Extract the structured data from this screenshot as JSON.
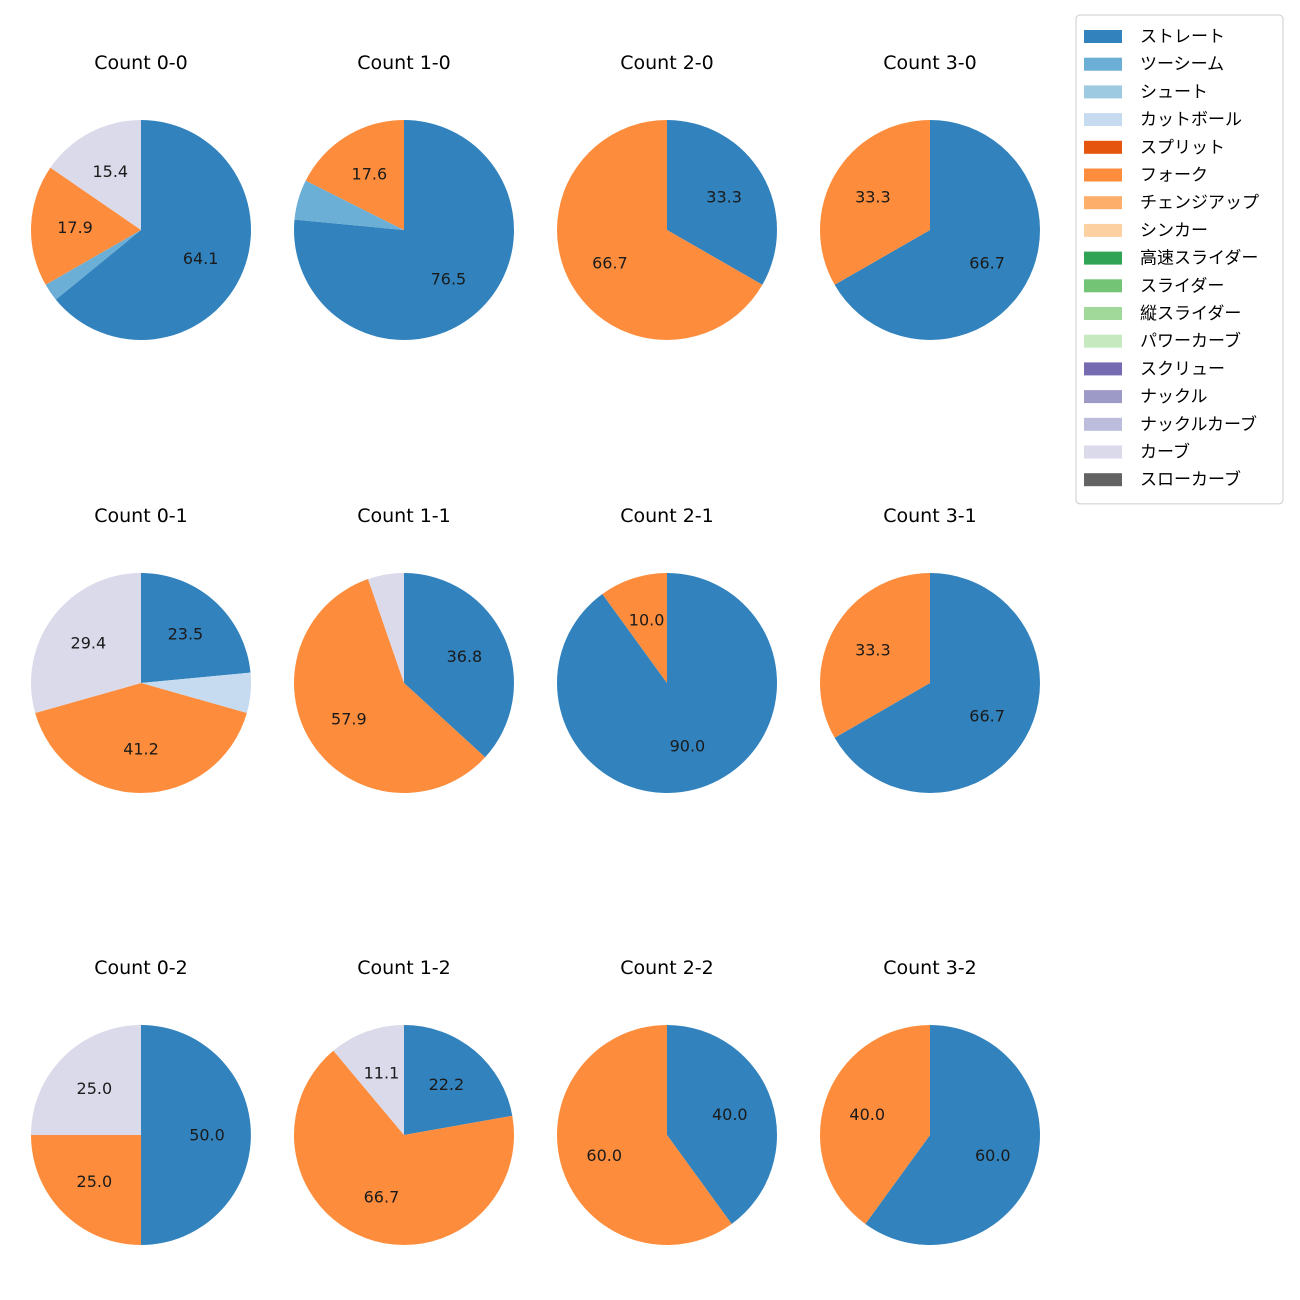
{
  "colors": {
    "ストレート": "#3182bd",
    "ツーシーム": "#6baed6",
    "シュート": "#9ecae1",
    "カットボール": "#c6dbef",
    "スプリット": "#e6550d",
    "フォーク": "#fd8d3c",
    "チェンジアップ": "#fdae6b",
    "シンカー": "#fdd0a2",
    "高速スライダー": "#31a354",
    "スライダー": "#74c476",
    "縦スライダー": "#a1d99b",
    "パワーカーブ": "#c7e9c0",
    "スクリュー": "#756bb1",
    "ナックル": "#9e9ac8",
    "ナックルカーブ": "#bcbddc",
    "カーブ": "#dadaeb",
    "スローカーブ": "#636363"
  },
  "legend": [
    "ストレート",
    "ツーシーム",
    "シュート",
    "カットボール",
    "スプリット",
    "フォーク",
    "チェンジアップ",
    "シンカー",
    "高速スライダー",
    "スライダー",
    "縦スライダー",
    "パワーカーブ",
    "スクリュー",
    "ナックル",
    "ナックルカーブ",
    "カーブ",
    "スローカーブ"
  ],
  "chart_data": [
    {
      "type": "pie",
      "title": "Count 0-0",
      "slices": [
        {
          "label": "ストレート",
          "value": 64.1,
          "text": "64.1"
        },
        {
          "label": "ツーシーム",
          "value": 2.6,
          "text": ""
        },
        {
          "label": "フォーク",
          "value": 17.9,
          "text": "17.9"
        },
        {
          "label": "カーブ",
          "value": 15.4,
          "text": "15.4"
        }
      ]
    },
    {
      "type": "pie",
      "title": "Count 1-0",
      "slices": [
        {
          "label": "ストレート",
          "value": 76.5,
          "text": "76.5"
        },
        {
          "label": "ツーシーム",
          "value": 5.9,
          "text": ""
        },
        {
          "label": "フォーク",
          "value": 17.6,
          "text": "17.6"
        }
      ]
    },
    {
      "type": "pie",
      "title": "Count 2-0",
      "slices": [
        {
          "label": "ストレート",
          "value": 33.3,
          "text": "33.3"
        },
        {
          "label": "フォーク",
          "value": 66.7,
          "text": "66.7"
        }
      ]
    },
    {
      "type": "pie",
      "title": "Count 3-0",
      "slices": [
        {
          "label": "ストレート",
          "value": 66.7,
          "text": "66.7"
        },
        {
          "label": "フォーク",
          "value": 33.3,
          "text": "33.3"
        }
      ]
    },
    {
      "type": "pie",
      "title": "Count 0-1",
      "slices": [
        {
          "label": "ストレート",
          "value": 23.5,
          "text": "23.5"
        },
        {
          "label": "カットボール",
          "value": 5.9,
          "text": ""
        },
        {
          "label": "フォーク",
          "value": 41.2,
          "text": "41.2"
        },
        {
          "label": "カーブ",
          "value": 29.4,
          "text": "29.4"
        }
      ]
    },
    {
      "type": "pie",
      "title": "Count 1-1",
      "slices": [
        {
          "label": "ストレート",
          "value": 36.8,
          "text": "36.8"
        },
        {
          "label": "フォーク",
          "value": 57.9,
          "text": "57.9"
        },
        {
          "label": "カーブ",
          "value": 5.3,
          "text": ""
        }
      ]
    },
    {
      "type": "pie",
      "title": "Count 2-1",
      "slices": [
        {
          "label": "ストレート",
          "value": 90.0,
          "text": "90.0"
        },
        {
          "label": "フォーク",
          "value": 10.0,
          "text": "10.0"
        }
      ]
    },
    {
      "type": "pie",
      "title": "Count 3-1",
      "slices": [
        {
          "label": "ストレート",
          "value": 66.7,
          "text": "66.7"
        },
        {
          "label": "フォーク",
          "value": 33.3,
          "text": "33.3"
        }
      ]
    },
    {
      "type": "pie",
      "title": "Count 0-2",
      "slices": [
        {
          "label": "ストレート",
          "value": 50.0,
          "text": "50.0"
        },
        {
          "label": "フォーク",
          "value": 25.0,
          "text": "25.0"
        },
        {
          "label": "カーブ",
          "value": 25.0,
          "text": "25.0"
        }
      ]
    },
    {
      "type": "pie",
      "title": "Count 1-2",
      "slices": [
        {
          "label": "ストレート",
          "value": 22.2,
          "text": "22.2"
        },
        {
          "label": "フォーク",
          "value": 66.7,
          "text": "66.7"
        },
        {
          "label": "カーブ",
          "value": 11.1,
          "text": "11.1"
        }
      ]
    },
    {
      "type": "pie",
      "title": "Count 2-2",
      "slices": [
        {
          "label": "ストレート",
          "value": 40.0,
          "text": "40.0"
        },
        {
          "label": "フォーク",
          "value": 60.0,
          "text": "60.0"
        }
      ]
    },
    {
      "type": "pie",
      "title": "Count 3-2",
      "slices": [
        {
          "label": "ストレート",
          "value": 60.0,
          "text": "60.0"
        },
        {
          "label": "フォーク",
          "value": 40.0,
          "text": "40.0"
        }
      ]
    }
  ]
}
